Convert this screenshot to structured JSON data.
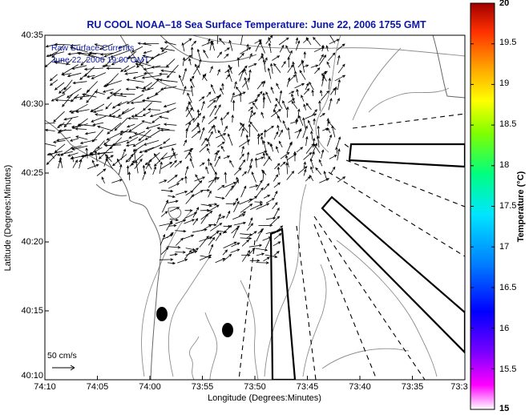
{
  "title": "RU COOL  NOAA–18  Sea Surface Temperature:  June 22, 2006 1755 GMT",
  "annotation": {
    "line1": "Raw Surface Currents",
    "line2": "June 22, 2006 19:00 GMT"
  },
  "axes": {
    "xlabel": "Longitude (Degrees:Minutes)",
    "ylabel": "Latitude (Degrees:Minutes)",
    "xticks": [
      "74:10",
      "74:05",
      "74:00",
      "73:55",
      "73:50",
      "73:45",
      "73:40",
      "73:35",
      "73:3"
    ],
    "yticks": [
      "40:35",
      "40:30",
      "40:25",
      "40:20",
      "40:15",
      "40:10"
    ]
  },
  "scale_bar": {
    "label": "50 cm/s"
  },
  "colorbar": {
    "label": "Temperature (°C)",
    "ticks": [
      "20",
      "19.5",
      "19",
      "18.5",
      "18",
      "17.5",
      "17",
      "16.5",
      "16",
      "15.5",
      "15"
    ],
    "min": 15,
    "max": 20,
    "colors": [
      "#ff00ff",
      "#7a00ff",
      "#0000ff",
      "#0080ff",
      "#00e5ff",
      "#00ff80",
      "#80ff00",
      "#ffff00",
      "#ffa500",
      "#ff3000",
      "#a00000"
    ]
  },
  "colors": {
    "title": "#0c17a8",
    "annotation": "#0c17a8",
    "land": "#ffffff",
    "contour": "#8c8c8c"
  }
}
